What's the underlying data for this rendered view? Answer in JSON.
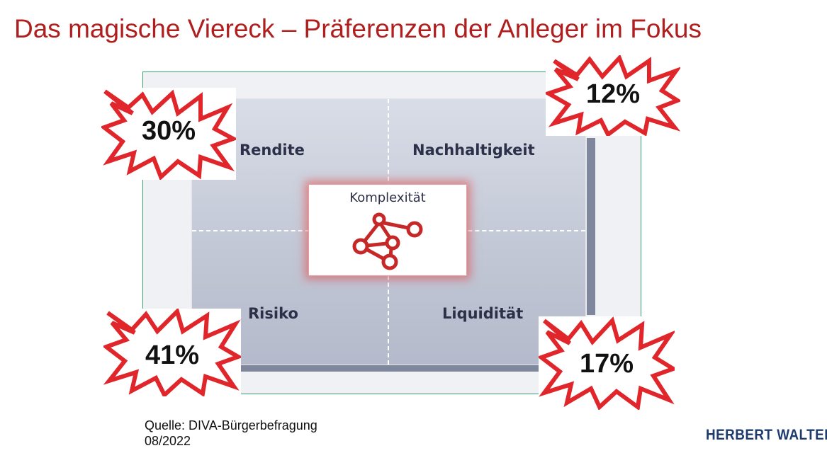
{
  "slide": {
    "title": "Das magische Viereck – Präferenzen der Anleger im Fokus"
  },
  "diagram": {
    "quadrants": {
      "top_left": "Rendite",
      "top_right": "Nachhaltigkeit",
      "bottom_left": "Risiko",
      "bottom_right": "Liquidität"
    },
    "center": {
      "label": "Komplexität",
      "icon": "molecule-network-icon"
    }
  },
  "preferences": {
    "rendite": "30%",
    "nachhaltigkeit": "12%",
    "risiko": "41%",
    "liquiditaet": "17%"
  },
  "source": {
    "line1": "Quelle: DIVA-Bürgerbefragung",
    "line2": "08/2022"
  },
  "logo": {
    "text": "HERBERT WALTER"
  },
  "colors": {
    "title": "#b01e1e",
    "burst_stroke": "#e0262b",
    "molecule": "#c62828",
    "quadrant_text": "#2c3048",
    "logo": "#1f3b6e",
    "frame_border": "#3aa36f"
  }
}
